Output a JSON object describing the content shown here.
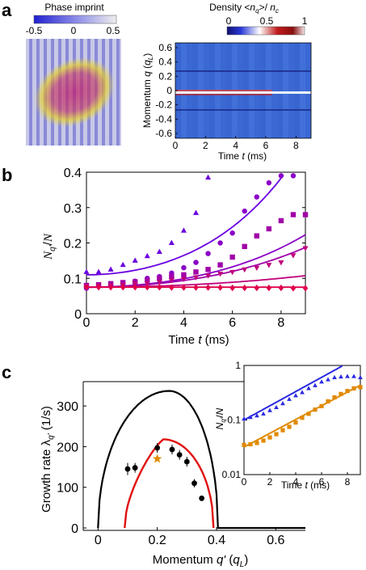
{
  "panel_labels": {
    "a": "a",
    "b": "b",
    "c": "c"
  },
  "colors": {
    "blue": "#2a2ae0",
    "orange": "#e08a00",
    "red": "#e01010",
    "black": "#000000",
    "series_b": [
      "#6a00e0",
      "#8a00c8",
      "#a000a8",
      "#c0007a",
      "#e0004a"
    ]
  },
  "panel_a": {
    "imprint": {
      "colorbar_title": "Phase imprint",
      "ticks": [
        "-0.5",
        "0",
        "0.5"
      ]
    },
    "density": {
      "colorbar_title": "Density <n_q>/ n_c",
      "colorbar_title_parts": {
        "pre": "Density <",
        "var": "n",
        "sub_q": "q",
        "mid": ">/ ",
        "var2": "n",
        "sub_c": "c"
      },
      "ticks": [
        "0",
        "0.5",
        "1"
      ],
      "ylabel_parts": {
        "pre": "Momentum ",
        "var": "q",
        "unit_pre": " (",
        "unit_var": "q",
        "unit_sub": "L",
        "unit_post": ")"
      },
      "xlabel_parts": {
        "pre": "Time ",
        "var": "t",
        "post": " (ms)"
      },
      "yticks": [
        "0.6",
        "0.4",
        "0.2",
        "0",
        "-0.2",
        "-0.4",
        "-0.6"
      ],
      "xticks": [
        "0",
        "2",
        "4",
        "6",
        "8"
      ]
    }
  },
  "chart_data": [
    {
      "type": "scatter",
      "panel": "b",
      "xlabel": "Time t (ms)",
      "ylabel": "N_q'/N",
      "xlim": [
        0,
        9
      ],
      "ylim": [
        0,
        0.4
      ],
      "xticks": [
        "0",
        "2",
        "4",
        "6",
        "8"
      ],
      "yticks": [
        "0",
        "0.1",
        "0.2",
        "0.3",
        "0.4"
      ],
      "series": [
        {
          "marker": "triangle",
          "color": "#6a00e0",
          "x": [
            0,
            0.5,
            1,
            1.5,
            2,
            2.5,
            3,
            3.5,
            4,
            4.5,
            5
          ],
          "y": [
            0.118,
            0.118,
            0.125,
            0.138,
            0.15,
            0.163,
            0.175,
            0.2,
            0.235,
            0.285,
            0.385
          ],
          "fit": {
            "a": 0.11,
            "k": 0.24
          }
        },
        {
          "marker": "circle",
          "color": "#8a00c8",
          "x": [
            0,
            0.5,
            1,
            1.5,
            2,
            2.5,
            3,
            3.5,
            4,
            4.5,
            5,
            5.5,
            6,
            6.5,
            7,
            7.5,
            8,
            8.5
          ],
          "y": [
            0.072,
            0.078,
            0.082,
            0.085,
            0.092,
            0.1,
            0.105,
            0.115,
            0.13,
            0.145,
            0.17,
            0.2,
            0.228,
            0.29,
            0.33,
            0.37,
            0.39,
            0.39
          ],
          "fit": {
            "a": 0.075,
            "k": 0.195
          }
        },
        {
          "marker": "square",
          "color": "#a000a8",
          "x": [
            0,
            0.5,
            1,
            1.5,
            2,
            2.5,
            3,
            3.5,
            4,
            4.5,
            5,
            5.5,
            6,
            6.5,
            7,
            7.5,
            8,
            8.5,
            9
          ],
          "y": [
            0.08,
            0.082,
            0.085,
            0.088,
            0.09,
            0.095,
            0.1,
            0.105,
            0.11,
            0.118,
            0.125,
            0.138,
            0.16,
            0.19,
            0.22,
            0.24,
            0.263,
            0.28,
            0.28
          ],
          "fit": {
            "a": 0.075,
            "k": 0.174
          }
        },
        {
          "marker": "triangle-down",
          "color": "#c0007a",
          "x": [
            0,
            0.5,
            1,
            1.5,
            2,
            2.5,
            3,
            3.5,
            4,
            4.5,
            5,
            5.5,
            6,
            6.5,
            7,
            7.5,
            8,
            8.5,
            9
          ],
          "y": [
            0.078,
            0.08,
            0.08,
            0.082,
            0.085,
            0.086,
            0.09,
            0.095,
            0.098,
            0.103,
            0.108,
            0.113,
            0.118,
            0.125,
            0.13,
            0.138,
            0.145,
            0.165,
            0.185
          ],
          "fit": {
            "a": 0.075,
            "k": 0.1
          }
        },
        {
          "marker": "diamond",
          "color": "#e0004a",
          "x": [
            0,
            0.5,
            1,
            1.5,
            2,
            2.5,
            3,
            3.5,
            4,
            4.5,
            5,
            5.5,
            6,
            6.5,
            7,
            7.5,
            8,
            8.5,
            9
          ],
          "y": [
            0.075,
            0.075,
            0.075,
            0.075,
            0.075,
            0.075,
            0.075,
            0.074,
            0.074,
            0.074,
            0.074,
            0.074,
            0.073,
            0.073,
            0.073,
            0.073,
            0.073,
            0.072,
            0.072
          ],
          "fit": {
            "a": 0.075,
            "k": 0.0
          }
        }
      ]
    },
    {
      "type": "scatter",
      "panel": "c",
      "xlabel": "Momentum q' (q_L)",
      "ylabel": "Growth rate λ_q' (1/s)",
      "xlim": [
        -0.05,
        0.7
      ],
      "ylim": [
        0,
        350
      ],
      "xticks": [
        "0",
        "0.2",
        "0.4",
        "0.6"
      ],
      "yticks": [
        "0",
        "100",
        "200",
        "300"
      ],
      "points": {
        "x": [
          0.1,
          0.125,
          0.2,
          0.25,
          0.275,
          0.3,
          0.325,
          0.35
        ],
        "y": [
          145,
          148,
          197,
          193,
          180,
          163,
          110,
          73
        ],
        "err": [
          15,
          12,
          12,
          12,
          12,
          12,
          10,
          5
        ]
      },
      "star": {
        "x": 0.2,
        "y": 170
      },
      "black_curve": {
        "x0": 0.0,
        "x1": 0.405,
        "peak_x": 0.24,
        "peak_y": 337,
        "flat_y": 0
      },
      "red_curve": {
        "x0": 0.09,
        "x1": 0.39,
        "peak_x": 0.22,
        "peak_y": 218
      }
    },
    {
      "type": "scatter",
      "panel": "c-inset",
      "xlabel": "Time t (ms)",
      "ylabel": "N_q'/N",
      "ylog": true,
      "xlim": [
        0,
        9
      ],
      "ylim": [
        0.01,
        1
      ],
      "xticks": [
        "0",
        "2",
        "4",
        "6",
        "8"
      ],
      "yticks": [
        "1",
        "0.1",
        "0.01"
      ],
      "series": [
        {
          "marker": "triangle",
          "color": "#2a2ae0",
          "x": [
            0,
            0.5,
            1,
            1.5,
            2,
            2.5,
            3,
            3.5,
            4,
            4.5,
            5,
            5.5,
            6,
            6.5,
            7,
            7.5,
            8,
            8.5,
            9
          ],
          "y": [
            0.105,
            0.112,
            0.12,
            0.13,
            0.15,
            0.17,
            0.2,
            0.24,
            0.28,
            0.32,
            0.38,
            0.43,
            0.5,
            0.55,
            0.6,
            0.62,
            0.63,
            0.63,
            0.6
          ],
          "fit": {
            "a": 0.1,
            "k": 0.3
          }
        },
        {
          "marker": "square",
          "color": "#e08a00",
          "x": [
            0,
            0.5,
            1,
            1.5,
            2,
            2.5,
            3,
            3.5,
            4,
            4.5,
            5,
            5.5,
            6,
            6.5,
            7,
            7.5,
            8,
            8.5,
            9
          ],
          "y": [
            0.035,
            0.036,
            0.038,
            0.042,
            0.048,
            0.055,
            0.065,
            0.075,
            0.09,
            0.11,
            0.13,
            0.155,
            0.18,
            0.22,
            0.26,
            0.3,
            0.34,
            0.38,
            0.4
          ],
          "fit": {
            "a": 0.032,
            "k": 0.29
          }
        }
      ]
    }
  ]
}
